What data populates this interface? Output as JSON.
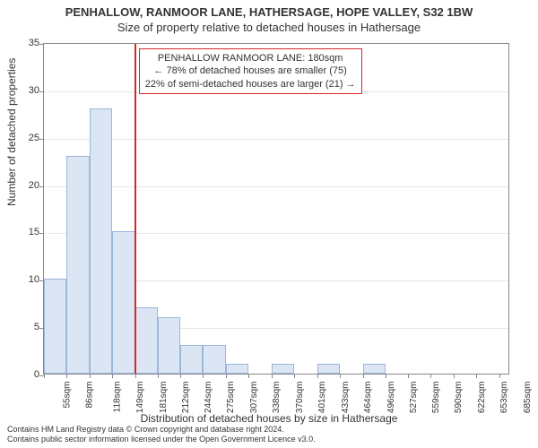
{
  "titles": {
    "main": "PENHALLOW, RANMOOR LANE, HATHERSAGE, HOPE VALLEY, S32 1BW",
    "sub": "Size of property relative to detached houses in Hathersage",
    "y_axis": "Number of detached properties",
    "x_axis": "Distribution of detached houses by size in Hathersage"
  },
  "chart": {
    "type": "histogram",
    "background_color": "#ffffff",
    "grid_color": "#e6e6e6",
    "axis_color": "#888888",
    "bar_fill": "#dbe5f4",
    "bar_stroke": "#9bb7dd",
    "marker_color": "#d62728",
    "ylim": [
      0,
      35
    ],
    "yticks": [
      0,
      5,
      10,
      15,
      20,
      25,
      30,
      35
    ],
    "xlim": [
      55,
      700
    ],
    "xticks": [
      55,
      86,
      118,
      149,
      181,
      212,
      244,
      275,
      307,
      338,
      370,
      401,
      433,
      464,
      496,
      527,
      559,
      590,
      622,
      653,
      685
    ],
    "xtick_suffix": "sqm",
    "bars": [
      {
        "x0": 55,
        "x1": 86,
        "y": 10
      },
      {
        "x0": 86,
        "x1": 118,
        "y": 23
      },
      {
        "x0": 118,
        "x1": 149,
        "y": 28
      },
      {
        "x0": 149,
        "x1": 181,
        "y": 15
      },
      {
        "x0": 181,
        "x1": 212,
        "y": 7
      },
      {
        "x0": 212,
        "x1": 244,
        "y": 6
      },
      {
        "x0": 244,
        "x1": 275,
        "y": 3
      },
      {
        "x0": 275,
        "x1": 307,
        "y": 3
      },
      {
        "x0": 307,
        "x1": 338,
        "y": 1
      },
      {
        "x0": 338,
        "x1": 370,
        "y": 0
      },
      {
        "x0": 370,
        "x1": 401,
        "y": 1
      },
      {
        "x0": 401,
        "x1": 433,
        "y": 0
      },
      {
        "x0": 433,
        "x1": 464,
        "y": 1
      },
      {
        "x0": 464,
        "x1": 496,
        "y": 0
      },
      {
        "x0": 496,
        "x1": 527,
        "y": 1
      },
      {
        "x0": 527,
        "x1": 559,
        "y": 0
      },
      {
        "x0": 559,
        "x1": 590,
        "y": 0
      },
      {
        "x0": 590,
        "x1": 622,
        "y": 0
      },
      {
        "x0": 622,
        "x1": 653,
        "y": 0
      },
      {
        "x0": 653,
        "x1": 685,
        "y": 0
      }
    ],
    "marker_x": 180
  },
  "annotation": {
    "line1": "PENHALLOW RANMOOR LANE: 180sqm",
    "line2": "← 78% of detached houses are smaller (75)",
    "line3": "22% of semi-detached houses are larger (21) →"
  },
  "footer": {
    "line1": "Contains HM Land Registry data © Crown copyright and database right 2024.",
    "line2": "Contains public sector information licensed under the Open Government Licence v3.0."
  }
}
